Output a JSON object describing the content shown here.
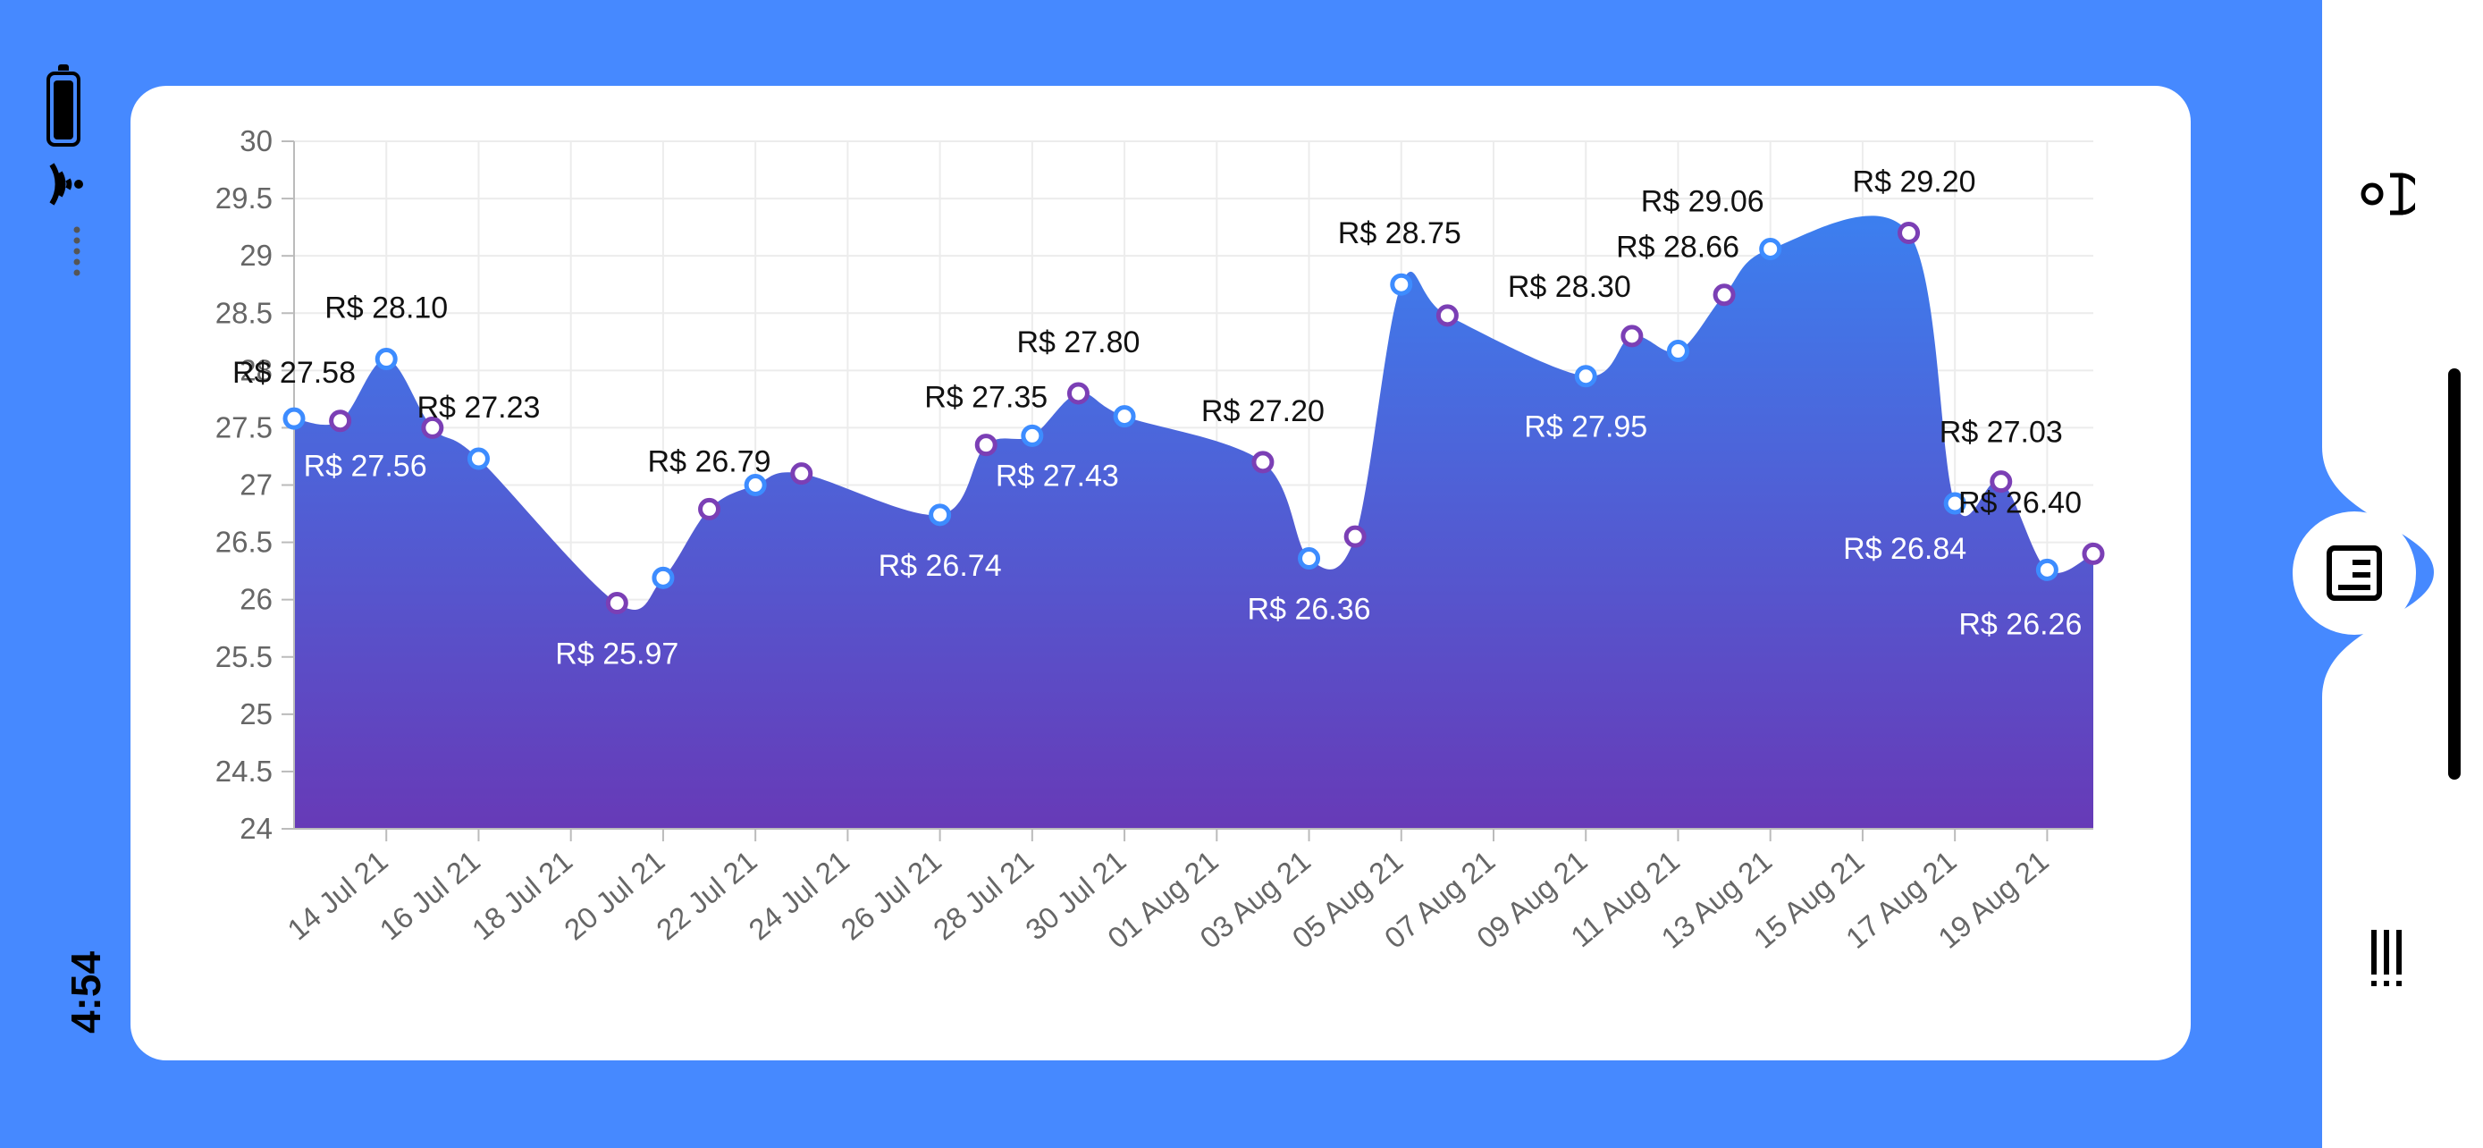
{
  "status_bar": {
    "time": "4:54",
    "battery_level": 1.0
  },
  "icons": {
    "battery": "battery-icon",
    "wifi": "wifi-icon",
    "signal": "signal-dots-icon",
    "camera": "camera-icon",
    "notes": "notes-icon",
    "barcode": "barcode-icon"
  },
  "colors": {
    "background": "#4689ff",
    "card": "#ffffff",
    "area_top": "#3c7fef",
    "area_bottom": "#673ab7",
    "marker_fill": "#ffffff"
  },
  "chart_data": {
    "type": "area",
    "grid": true,
    "ylim": [
      24,
      30
    ],
    "y_ticks": [
      "30",
      "29.5",
      "29",
      "28.5",
      "28",
      "27.5",
      "27",
      "26.5",
      "26",
      "25.5",
      "25",
      "24.5",
      "24"
    ],
    "x_tick_labels": [
      "14 Jul 21",
      "16 Jul 21",
      "18 Jul 21",
      "20 Jul 21",
      "22 Jul 21",
      "24 Jul 21",
      "26 Jul 21",
      "28 Jul 21",
      "30 Jul 21",
      "01 Aug 21",
      "03 Aug 21",
      "05 Aug 21",
      "07 Aug 21",
      "09 Aug 21",
      "11 Aug 21",
      "13 Aug 21",
      "15 Aug 21",
      "17 Aug 21",
      "19 Aug 21"
    ],
    "x_range": [
      "2021-07-12",
      "2021-08-20"
    ],
    "points": [
      {
        "date": "2021-07-12",
        "value": 27.58,
        "label": "R$ 27.58"
      },
      {
        "date": "2021-07-13",
        "value": 27.56,
        "label": "R$ 27.56"
      },
      {
        "date": "2021-07-14",
        "value": 28.1,
        "label": "R$ 28.10"
      },
      {
        "date": "2021-07-15",
        "value": 27.5,
        "label": ""
      },
      {
        "date": "2021-07-16",
        "value": 27.23,
        "label": "R$ 27.23"
      },
      {
        "date": "2021-07-19",
        "value": 25.97,
        "label": "R$ 25.97"
      },
      {
        "date": "2021-07-20",
        "value": 26.19,
        "label": ""
      },
      {
        "date": "2021-07-21",
        "value": 26.79,
        "label": "R$ 26.79"
      },
      {
        "date": "2021-07-22",
        "value": 27.0,
        "label": ""
      },
      {
        "date": "2021-07-23",
        "value": 27.1,
        "label": ""
      },
      {
        "date": "2021-07-26",
        "value": 26.74,
        "label": "R$ 26.74"
      },
      {
        "date": "2021-07-27",
        "value": 27.35,
        "label": "R$ 27.35"
      },
      {
        "date": "2021-07-28",
        "value": 27.43,
        "label": "R$ 27.43"
      },
      {
        "date": "2021-07-29",
        "value": 27.8,
        "label": "R$ 27.80"
      },
      {
        "date": "2021-07-30",
        "value": 27.6,
        "label": ""
      },
      {
        "date": "2021-08-02",
        "value": 27.2,
        "label": "R$ 27.20"
      },
      {
        "date": "2021-08-03",
        "value": 26.36,
        "label": "R$ 26.36"
      },
      {
        "date": "2021-08-04",
        "value": 26.55,
        "label": ""
      },
      {
        "date": "2021-08-05",
        "value": 28.75,
        "label": "R$ 28.75"
      },
      {
        "date": "2021-08-06",
        "value": 28.48,
        "label": ""
      },
      {
        "date": "2021-08-09",
        "value": 27.95,
        "label": "R$ 27.95"
      },
      {
        "date": "2021-08-10",
        "value": 28.3,
        "label": "R$ 28.30"
      },
      {
        "date": "2021-08-11",
        "value": 28.17,
        "label": ""
      },
      {
        "date": "2021-08-12",
        "value": 28.66,
        "label": "R$ 28.66"
      },
      {
        "date": "2021-08-13",
        "value": 29.06,
        "label": "R$ 29.06"
      },
      {
        "date": "2021-08-16",
        "value": 29.2,
        "label": "R$ 29.20"
      },
      {
        "date": "2021-08-17",
        "value": 26.84,
        "label": "R$ 26.84"
      },
      {
        "date": "2021-08-18",
        "value": 27.03,
        "label": "R$ 27.03"
      },
      {
        "date": "2021-08-19",
        "value": 26.26,
        "label": "R$ 26.26"
      },
      {
        "date": "2021-08-20",
        "value": 26.4,
        "label": "R$ 26.40"
      }
    ]
  }
}
